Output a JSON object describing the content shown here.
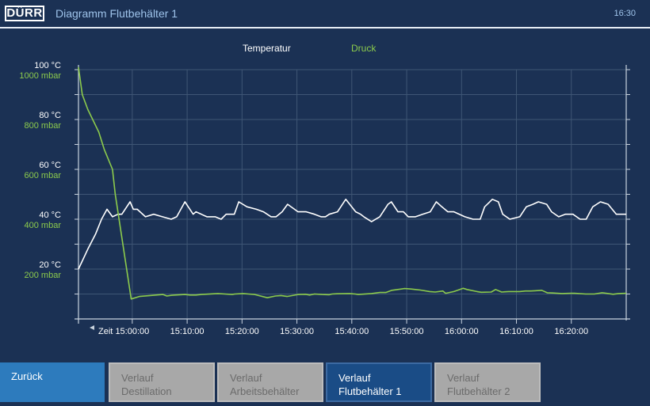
{
  "header": {
    "logo_text": "DÜRR",
    "title": "Diagramm Flutbehälter 1",
    "clock": "16:30"
  },
  "legend": {
    "temperature": "Temperatur",
    "pressure": "Druck"
  },
  "colors": {
    "background": "#1b3154",
    "temperature": "#ffffff",
    "pressure": "#8ccb4c",
    "active_button": "#1a4c86",
    "back_button": "#2d7bbd"
  },
  "chart_data": {
    "type": "line",
    "x_axis_label": "Zeit",
    "x_tick_labels": [
      "15:00:00",
      "15:10:00",
      "15:20:00",
      "15:30:00",
      "15:40:00",
      "15:50:00",
      "16:00:00",
      "16:10:00",
      "16:20:00"
    ],
    "x_tick_minutes": [
      50,
      60,
      70,
      80,
      90,
      100,
      110,
      120,
      130
    ],
    "x_range_minutes": [
      40.2,
      140
    ],
    "y_left_temperature_ticks": [
      "100 °C",
      "80 °C",
      "60 °C",
      "40 °C",
      "20 °C"
    ],
    "y_left_pressure_ticks": [
      "1000 mbar",
      "800 mbar",
      "600 mbar",
      "400 mbar",
      "200 mbar"
    ],
    "y_tick_values": [
      100,
      80,
      60,
      40,
      20
    ],
    "ylim_temperature": [
      0,
      100
    ],
    "ylim_pressure": [
      0,
      1000
    ],
    "grid": true,
    "series": [
      {
        "name": "Temperatur",
        "unit": "°C",
        "x": [
          40.2,
          41.9,
          43.3,
          44.4,
          45.4,
          46.4,
          47.4,
          48.1,
          49.6,
          50.2,
          50.9,
          52.4,
          53.9,
          55.5,
          57.1,
          58.1,
          59.6,
          61.1,
          61.6,
          63.6,
          65.1,
          66.2,
          67.1,
          67.9,
          68.6,
          69.4,
          70.9,
          72.6,
          73.9,
          75.3,
          76.2,
          77.3,
          78.3,
          80.2,
          81.7,
          83.2,
          84.4,
          85.2,
          85.9,
          87.4,
          88.9,
          90.7,
          91.6,
          92.2,
          93.6,
          95.1,
          96.6,
          97.2,
          98.4,
          99.0,
          99.4,
          100.3,
          101.6,
          102.9,
          104.3,
          105.4,
          106.4,
          107.5,
          108.6,
          110.6,
          112.1,
          113.4,
          114.2,
          114.7,
          115.6,
          116.7,
          117.5,
          118.8,
          120.6,
          121.8,
          123.0,
          124.0,
          125.5,
          126.4,
          127.7,
          128.9,
          130.3,
          131.6,
          132.7,
          133.9,
          135.3,
          136.7,
          138.2,
          139.4,
          140.0
        ],
        "y": [
          20,
          28,
          34,
          40,
          44,
          41,
          42,
          42,
          47,
          44,
          44,
          41,
          42,
          41,
          40,
          41,
          47,
          42,
          43,
          41,
          41,
          40,
          42,
          42,
          42,
          47,
          45,
          44,
          43,
          41,
          41,
          43,
          46,
          43,
          43,
          42,
          41,
          41,
          42,
          43,
          48,
          43,
          42,
          41,
          39,
          41,
          46,
          47,
          43,
          43,
          43,
          41,
          41,
          42,
          43,
          47,
          45,
          43,
          43,
          41,
          40,
          40,
          45,
          46,
          48,
          47,
          42,
          40,
          41,
          45,
          46,
          47,
          46,
          43,
          41,
          42,
          42,
          40,
          40,
          45,
          47,
          46,
          42,
          42,
          42
        ]
      },
      {
        "name": "Druck",
        "unit": "mbar",
        "x": [
          40.2,
          40.9,
          41.9,
          43.9,
          44.9,
          46.4,
          46.9,
          49.8,
          50.1,
          51.3,
          55.6,
          56.3,
          57.2,
          59.6,
          60.5,
          61.6,
          62.6,
          65.6,
          66.9,
          68.2,
          68.7,
          70.2,
          71.2,
          72.3,
          74.6,
          76.1,
          77.1,
          78.2,
          80.2,
          81.6,
          82.3,
          83.2,
          84.6,
          85.9,
          86.4,
          87.3,
          89.6,
          90.6,
          91.2,
          93.6,
          95.1,
          96.2,
          97.3,
          99.6,
          100.8,
          101.6,
          102.5,
          104.2,
          105.2,
          106.6,
          107.1,
          108.6,
          110.3,
          111.0,
          112.8,
          113.6,
          115.4,
          116.2,
          117.3,
          118.6,
          120.6,
          121.6,
          122.6,
          123.3,
          124.6,
          125.6,
          126.6,
          128.3,
          129.9,
          130.6,
          132.6,
          134.2,
          135.6,
          136.7,
          137.6,
          138.6,
          140.0
        ],
        "y": [
          1010,
          900,
          840,
          750,
          680,
          600,
          500,
          80,
          82,
          90,
          98,
          92,
          95,
          98,
          96,
          96,
          98,
          102,
          100,
          98,
          100,
          102,
          100,
          98,
          85,
          92,
          94,
          90,
          98,
          99,
          96,
          100,
          98,
          97,
          100,
          101,
          102,
          100,
          98,
          102,
          106,
          106,
          115,
          122,
          120,
          118,
          116,
          110,
          108,
          112,
          103,
          110,
          123,
          118,
          110,
          107,
          108,
          118,
          108,
          110,
          110,
          112,
          112,
          113,
          115,
          105,
          104,
          102,
          103,
          103,
          100,
          100,
          105,
          102,
          99,
          102,
          103
        ]
      }
    ]
  },
  "buttons": {
    "back": "Zurück",
    "distillation_line1": "Verlauf",
    "distillation_line2": "Destillation",
    "work_line1": "Verlauf",
    "work_line2": "Arbeitsbehälter",
    "flood1_line1": "Verlauf",
    "flood1_line2": "Flutbehälter 1",
    "flood2_line1": "Verlauf",
    "flood2_line2": "Flutbehälter 2"
  }
}
